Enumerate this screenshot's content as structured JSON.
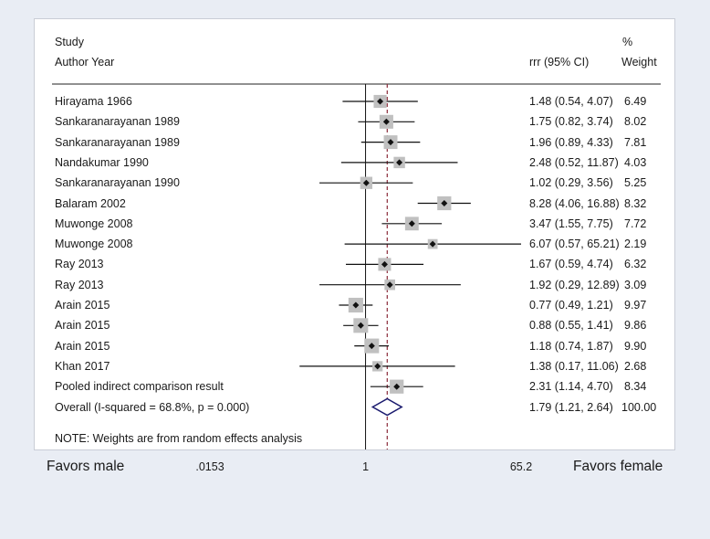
{
  "header": {
    "study": "Study",
    "author_year": "Author Year",
    "percent": "%",
    "effect": "rrr (95% CI)",
    "weight": "Weight"
  },
  "note": "NOTE: Weights are from random effects analysis",
  "favors": {
    "left": "Favors male",
    "right": "Favors female"
  },
  "chart_data": {
    "type": "forest",
    "scale": "log",
    "xlim": [
      0.0153,
      65.2
    ],
    "ticks": [
      {
        "value": 0.0153,
        "label": ".0153"
      },
      {
        "value": 1,
        "label": "1"
      },
      {
        "value": 65.2,
        "label": "65.2"
      }
    ],
    "reference_line": 1,
    "overall_line": 1.79,
    "colors": {
      "marker": "#c0c0c0",
      "diamond": "#1a1a6e",
      "dash": "#8b2a3a",
      "line": "#111111"
    },
    "studies": [
      {
        "label": "Hirayama 1966",
        "rr": 1.48,
        "lo": 0.54,
        "hi": 4.07,
        "ci_text": "1.48 (0.54, 4.07)",
        "weight": 6.49,
        "weight_text": "6.49"
      },
      {
        "label": "Sankaranarayanan 1989",
        "rr": 1.75,
        "lo": 0.82,
        "hi": 3.74,
        "ci_text": "1.75 (0.82, 3.74)",
        "weight": 8.02,
        "weight_text": "8.02"
      },
      {
        "label": "Sankaranarayanan 1989",
        "rr": 1.96,
        "lo": 0.89,
        "hi": 4.33,
        "ci_text": "1.96 (0.89, 4.33)",
        "weight": 7.81,
        "weight_text": "7.81"
      },
      {
        "label": "Nandakumar 1990",
        "rr": 2.48,
        "lo": 0.52,
        "hi": 11.87,
        "ci_text": "2.48 (0.52, 11.87)",
        "weight": 4.03,
        "weight_text": "4.03"
      },
      {
        "label": "Sankaranarayanan 1990",
        "rr": 1.02,
        "lo": 0.29,
        "hi": 3.56,
        "ci_text": "1.02 (0.29, 3.56)",
        "weight": 5.25,
        "weight_text": "5.25"
      },
      {
        "label": "Balaram 2002",
        "rr": 8.28,
        "lo": 4.06,
        "hi": 16.88,
        "ci_text": "8.28 (4.06, 16.88)",
        "weight": 8.32,
        "weight_text": "8.32"
      },
      {
        "label": "Muwonge 2008",
        "rr": 3.47,
        "lo": 1.55,
        "hi": 7.75,
        "ci_text": "3.47 (1.55, 7.75)",
        "weight": 7.72,
        "weight_text": "7.72"
      },
      {
        "label": "Muwonge 2008",
        "rr": 6.07,
        "lo": 0.57,
        "hi": 65.21,
        "ci_text": "6.07 (0.57, 65.21)",
        "weight": 2.19,
        "weight_text": "2.19"
      },
      {
        "label": "Ray 2013",
        "rr": 1.67,
        "lo": 0.59,
        "hi": 4.74,
        "ci_text": "1.67 (0.59, 4.74)",
        "weight": 6.32,
        "weight_text": "6.32"
      },
      {
        "label": "Ray 2013",
        "rr": 1.92,
        "lo": 0.29,
        "hi": 12.89,
        "ci_text": "1.92 (0.29, 12.89)",
        "weight": 3.09,
        "weight_text": "3.09"
      },
      {
        "label": "Arain 2015",
        "rr": 0.77,
        "lo": 0.49,
        "hi": 1.21,
        "ci_text": "0.77 (0.49, 1.21)",
        "weight": 9.97,
        "weight_text": "9.97"
      },
      {
        "label": "Arain 2015",
        "rr": 0.88,
        "lo": 0.55,
        "hi": 1.41,
        "ci_text": "0.88 (0.55, 1.41)",
        "weight": 9.86,
        "weight_text": "9.86"
      },
      {
        "label": "Arain 2015",
        "rr": 1.18,
        "lo": 0.74,
        "hi": 1.87,
        "ci_text": "1.18 (0.74, 1.87)",
        "weight": 9.9,
        "weight_text": "9.90"
      },
      {
        "label": "Khan 2017",
        "rr": 1.38,
        "lo": 0.17,
        "hi": 11.06,
        "ci_text": "1.38 (0.17, 11.06)",
        "weight": 2.68,
        "weight_text": "2.68"
      },
      {
        "label": "Pooled indirect comparison result",
        "rr": 2.31,
        "lo": 1.14,
        "hi": 4.7,
        "ci_text": "2.31 (1.14, 4.70)",
        "weight": 8.34,
        "weight_text": "8.34"
      }
    ],
    "overall": {
      "label": "Overall  (I-squared = 68.8%, p = 0.000)",
      "rr": 1.79,
      "lo": 1.21,
      "hi": 2.64,
      "ci_text": "1.79 (1.21, 2.64)",
      "weight_text": "100.00"
    }
  }
}
